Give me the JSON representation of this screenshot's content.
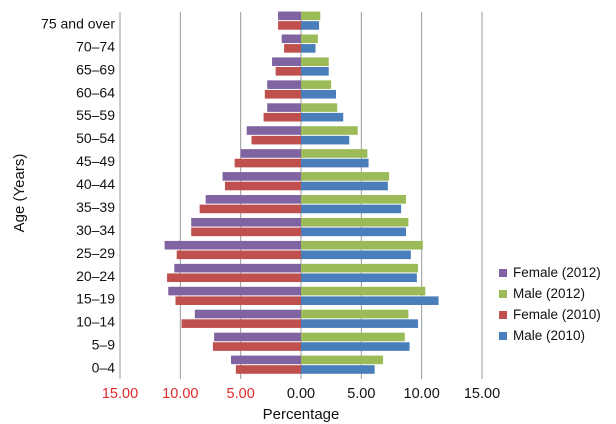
{
  "chart_data": {
    "type": "bar",
    "orientation": "horizontal",
    "xlabel": "Percentage",
    "ylabel": "Age (Years)",
    "xlim": [
      -15,
      15
    ],
    "x_ticks": [
      {
        "value": -15,
        "label": "15.00"
      },
      {
        "value": -10,
        "label": "10.00"
      },
      {
        "value": -5,
        "label": "5.00"
      },
      {
        "value": 0,
        "label": "0.00"
      },
      {
        "value": 5,
        "label": "5.00"
      },
      {
        "value": 10,
        "label": "10.00"
      },
      {
        "value": 15,
        "label": "15.00"
      }
    ],
    "negative_tick_color": "#e0282a",
    "gridlines": "vertical",
    "legend_position": "right",
    "categories": [
      "0–4",
      "5–9",
      "10–14",
      "15–19",
      "20–24",
      "25–29",
      "30–34",
      "35–39",
      "40–44",
      "45–49",
      "50–54",
      "55–59",
      "60–64",
      "65–69",
      "70–74",
      "75 and over"
    ],
    "series": [
      {
        "name": "Male (2010)",
        "color": "#4a7ebb",
        "values": [
          6.1,
          9.0,
          9.7,
          11.4,
          9.6,
          9.1,
          8.7,
          8.3,
          7.2,
          5.6,
          4.0,
          3.5,
          2.9,
          2.3,
          1.2,
          1.5
        ]
      },
      {
        "name": "Female (2010)",
        "color": "#c0504d",
        "values": [
          -5.4,
          -7.3,
          -9.9,
          -10.4,
          -11.1,
          -10.3,
          -9.1,
          -8.4,
          -6.3,
          -5.5,
          -4.1,
          -3.1,
          -3.0,
          -2.1,
          -1.4,
          -1.9
        ]
      },
      {
        "name": "Male (2012)",
        "color": "#9bbb59",
        "values": [
          6.8,
          8.6,
          8.9,
          10.3,
          9.7,
          10.1,
          8.9,
          8.7,
          7.3,
          5.5,
          4.7,
          3.0,
          2.5,
          2.3,
          1.4,
          1.6
        ]
      },
      {
        "name": "Female (2012)",
        "color": "#8064a2",
        "values": [
          -5.8,
          -7.2,
          -8.8,
          -11.0,
          -10.5,
          -11.3,
          -9.1,
          -7.9,
          -6.5,
          -5.0,
          -4.5,
          -2.8,
          -2.8,
          -2.4,
          -1.6,
          -1.9
        ]
      }
    ],
    "legend_order": [
      "Female (2012)",
      "Male (2012)",
      "Female (2010)",
      "Male (2010)"
    ]
  }
}
